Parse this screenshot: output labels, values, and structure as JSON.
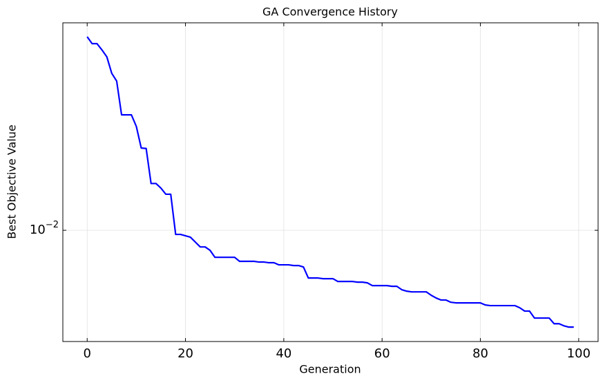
{
  "chart_data": {
    "type": "line",
    "title": "GA Convergence History",
    "x_label": "Generation",
    "y_label": "Best Objective Value",
    "x": [
      0,
      1,
      2,
      3,
      4,
      5,
      6,
      7,
      8,
      9,
      10,
      11,
      12,
      13,
      14,
      15,
      16,
      17,
      18,
      19,
      20,
      21,
      22,
      23,
      24,
      25,
      26,
      27,
      28,
      29,
      30,
      31,
      32,
      33,
      34,
      35,
      36,
      37,
      38,
      39,
      40,
      41,
      42,
      43,
      44,
      45,
      46,
      47,
      48,
      49,
      50,
      51,
      52,
      53,
      54,
      55,
      56,
      57,
      58,
      59,
      60,
      61,
      62,
      63,
      64,
      65,
      66,
      67,
      68,
      69,
      70,
      71,
      72,
      73,
      74,
      75,
      76,
      77,
      78,
      79,
      80,
      81,
      82,
      83,
      84,
      85,
      86,
      87,
      88,
      89,
      90,
      91,
      92,
      93,
      94,
      95,
      96,
      97,
      98,
      99
    ],
    "series": [
      {
        "name": "Best Objective Value",
        "color": "#0000ff",
        "values": [
          0.0681,
          0.0636,
          0.0636,
          0.0598,
          0.0558,
          0.0474,
          0.0439,
          0.0314,
          0.0314,
          0.0314,
          0.028,
          0.0226,
          0.0225,
          0.0159,
          0.0159,
          0.0152,
          0.0143,
          0.0143,
          0.0096,
          0.0096,
          0.00947,
          0.00934,
          0.0089,
          0.00848,
          0.00848,
          0.0082,
          0.00765,
          0.00765,
          0.00765,
          0.00765,
          0.00765,
          0.00735,
          0.00735,
          0.00735,
          0.00735,
          0.0073,
          0.0073,
          0.00725,
          0.00725,
          0.0071,
          0.0071,
          0.0071,
          0.00705,
          0.00705,
          0.00695,
          0.00623,
          0.00623,
          0.00623,
          0.00619,
          0.00619,
          0.00619,
          0.00602,
          0.00602,
          0.00602,
          0.00602,
          0.00598,
          0.00598,
          0.00594,
          0.00578,
          0.00578,
          0.00578,
          0.00578,
          0.00574,
          0.00574,
          0.00555,
          0.00547,
          0.00543,
          0.00543,
          0.00543,
          0.00543,
          0.00525,
          0.00511,
          0.00501,
          0.00501,
          0.0049,
          0.00487,
          0.00487,
          0.00487,
          0.00487,
          0.00487,
          0.00487,
          0.00477,
          0.00474,
          0.00474,
          0.00474,
          0.00474,
          0.00474,
          0.00474,
          0.00464,
          0.00449,
          0.00449,
          0.00419,
          0.00419,
          0.00419,
          0.00419,
          0.00396,
          0.00396,
          0.00388,
          0.00383,
          0.00383
        ]
      }
    ],
    "xlim": [
      -4.95,
      103.95
    ],
    "xticks": [
      0,
      20,
      40,
      60,
      80,
      100
    ],
    "ylim": [
      0.00332,
      0.0782
    ],
    "yticks": [
      {
        "value": 0.01,
        "label": "10−2"
      }
    ],
    "y_scale": "log",
    "grid": true
  }
}
